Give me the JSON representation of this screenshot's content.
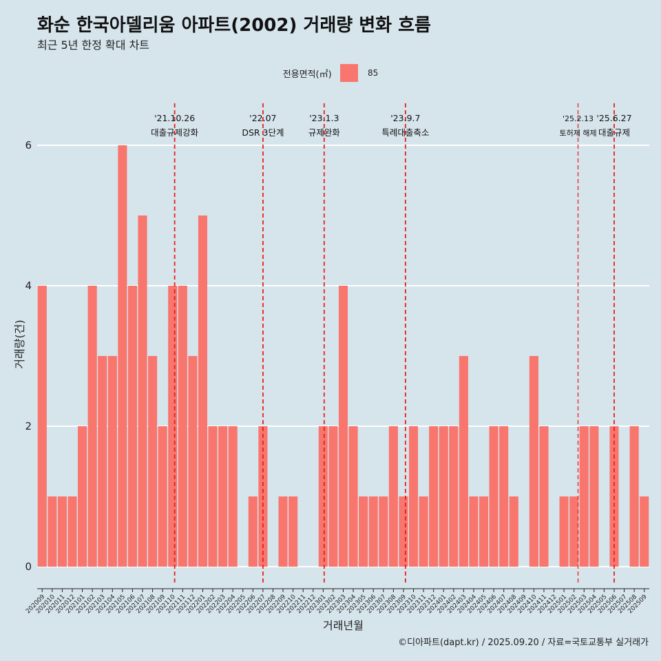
{
  "title": "화순 한국아델리움 아파트(2002) 거래량 변화 흐름",
  "subtitle": "최근 5년 한정 확대 차트",
  "caption": "©디아파트(dapt.kr) / 2025.09.20 / 자료=국토교통부 실거래가",
  "legend": {
    "title": "전용면적(㎡)",
    "item": "85"
  },
  "colors": {
    "bar": "#f8766d",
    "background": "#d6e4ec",
    "grid": "#ffffff",
    "event_line": "#e8201a"
  },
  "chart_data": {
    "type": "bar",
    "xlabel": "거래년월",
    "ylabel": "거래량(건)",
    "ylim": [
      0,
      6.2
    ],
    "yticks": [
      0,
      2,
      4,
      6
    ],
    "grid": true,
    "legend_position": "top",
    "series": [
      {
        "name": "85"
      }
    ],
    "categories": [
      "202009",
      "202010",
      "202011",
      "202012",
      "202101",
      "202102",
      "202103",
      "202104",
      "202105",
      "202106",
      "202107",
      "202108",
      "202109",
      "202110",
      "202111",
      "202112",
      "202201",
      "202202",
      "202203",
      "202204",
      "202205",
      "202206",
      "202207",
      "202208",
      "202209",
      "202210",
      "202211",
      "202212",
      "202301",
      "202302",
      "202303",
      "202304",
      "202305",
      "202306",
      "202307",
      "202308",
      "202309",
      "202310",
      "202311",
      "202312",
      "202401",
      "202402",
      "202403",
      "202404",
      "202405",
      "202406",
      "202407",
      "202408",
      "202409",
      "202410",
      "202411",
      "202412",
      "202501",
      "202502",
      "202503",
      "202504",
      "202505",
      "202506",
      "202507",
      "202508",
      "202509"
    ],
    "values": [
      4,
      1,
      1,
      1,
      2,
      4,
      3,
      3,
      6,
      4,
      5,
      3,
      2,
      4,
      4,
      3,
      5,
      2,
      2,
      2,
      0,
      1,
      2,
      0,
      1,
      1,
      0,
      0,
      2,
      2,
      4,
      2,
      1,
      1,
      1,
      2,
      1,
      2,
      1,
      2,
      2,
      2,
      3,
      1,
      1,
      2,
      2,
      1,
      0,
      3,
      2,
      0,
      1,
      1,
      2,
      2,
      0,
      2,
      0,
      2,
      1
    ],
    "annotations": [
      {
        "date": "'21.10.26",
        "label": "대출규제강화",
        "index": 13,
        "offset": 0.2,
        "small": false
      },
      {
        "date": "'22.07",
        "label": "DSR 3단계",
        "index": 22,
        "offset": 0,
        "small": false
      },
      {
        "date": "'23.1.3",
        "label": "규제완화",
        "index": 28,
        "offset": 0.1,
        "small": false
      },
      {
        "date": "'23.9.7",
        "label": "특례대출축소",
        "index": 36,
        "offset": 0.2,
        "small": false
      },
      {
        "date": "'25.2.13",
        "label": "토허제 해제",
        "index": 53,
        "offset": 0.4,
        "small": true
      },
      {
        "date": "'25.6.27",
        "label": "대출규제",
        "index": 57,
        "offset": 0,
        "small": false
      }
    ]
  }
}
